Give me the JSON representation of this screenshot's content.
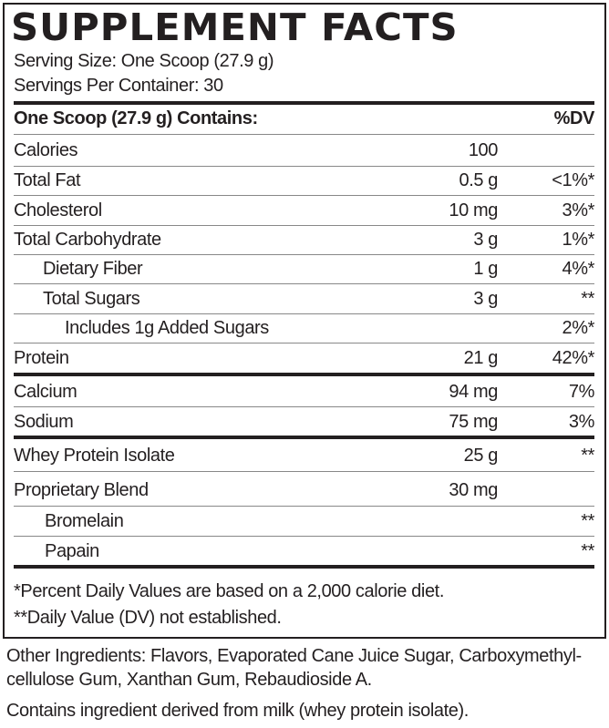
{
  "title": "SUPPLEMENT FACTS",
  "serving_size": "Serving Size: One Scoop (27.9 g)",
  "servings_per_container": "Servings Per Container: 30",
  "header": {
    "label": "One Scoop (27.9 g) Contains:",
    "dv": "%DV"
  },
  "rows": [
    {
      "name": "Calories",
      "amount": "100",
      "dv": ""
    },
    {
      "name": "Total Fat",
      "amount": "0.5 g",
      "dv": "<1%*"
    },
    {
      "name": "Cholesterol",
      "amount": "10 mg",
      "dv": "3%*"
    },
    {
      "name": "Total Carbohydrate",
      "amount": "3 g",
      "dv": "1%*"
    },
    {
      "name": "Dietary Fiber",
      "amount": "1 g",
      "dv": "4%*"
    },
    {
      "name": "Total Sugars",
      "amount": "3 g",
      "dv": "**"
    },
    {
      "name": "Includes 1g Added Sugars",
      "amount": "",
      "dv": "2%*"
    },
    {
      "name": "Protein",
      "amount": "21 g",
      "dv": "42%*"
    },
    {
      "name": "Calcium",
      "amount": "94 mg",
      "dv": "7%"
    },
    {
      "name": "Sodium",
      "amount": "75 mg",
      "dv": "3%"
    },
    {
      "name": "Whey Protein Isolate",
      "amount": "25 g",
      "dv": "**"
    },
    {
      "name": "Proprietary Blend",
      "amount": "30 mg",
      "dv": ""
    },
    {
      "name": "Bromelain",
      "amount": "",
      "dv": "**"
    },
    {
      "name": "Papain",
      "amount": "",
      "dv": "**"
    }
  ],
  "footnotes": [
    "*Percent Daily Values are based on a 2,000 calorie diet.",
    "**Daily Value (DV) not established."
  ],
  "other_ingredients": [
    "Other Ingredients: Flavors, Evaporated Cane Juice Sugar, Carboxymethyl-",
    "cellulose Gum, Xanthan Gum, Rebaudioside A."
  ],
  "allergen": "Contains ingredient derived from milk (whey protein isolate)."
}
